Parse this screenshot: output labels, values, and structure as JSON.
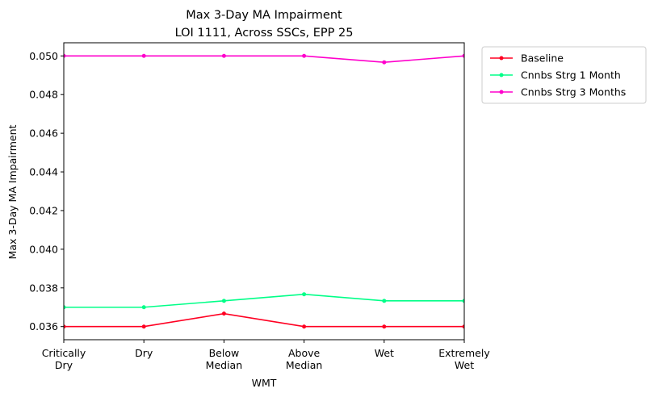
{
  "chart_data": {
    "type": "line",
    "title": "Max 3-Day MA Impairment",
    "subtitle": "LOI 1111, Across SSCs, EPP 25",
    "xlabel": "WMT",
    "ylabel": "Max 3-Day MA Impairment",
    "categories": [
      [
        "Critically",
        "Dry"
      ],
      [
        "Dry"
      ],
      [
        "Below",
        "Median"
      ],
      [
        "Above",
        "Median"
      ],
      [
        "Wet"
      ],
      [
        "Extremely",
        "Wet"
      ]
    ],
    "ylim": [
      0.03532,
      0.05068
    ],
    "yticks": [
      {
        "value": 0.036,
        "label": "0.036"
      },
      {
        "value": 0.038,
        "label": "0.038"
      },
      {
        "value": 0.04,
        "label": "0.040"
      },
      {
        "value": 0.042,
        "label": "0.042"
      },
      {
        "value": 0.044,
        "label": "0.044"
      },
      {
        "value": 0.046,
        "label": "0.046"
      },
      {
        "value": 0.048,
        "label": "0.048"
      },
      {
        "value": 0.05,
        "label": "0.050"
      }
    ],
    "grid": false,
    "legend_position": "outside-top-right",
    "series": [
      {
        "name": "Baseline",
        "color": "#ff0022",
        "values": [
          0.036,
          0.036,
          0.03667,
          0.036,
          0.036,
          0.036
        ]
      },
      {
        "name": "Cnnbs Strg 1 Month",
        "color": "#00ff88",
        "values": [
          0.037,
          0.037,
          0.03733,
          0.03767,
          0.03733,
          0.03733
        ]
      },
      {
        "name": "Cnnbs Strg 3 Months",
        "color": "#ff00cc",
        "values": [
          0.05,
          0.05,
          0.05,
          0.05,
          0.04967,
          0.05
        ]
      }
    ]
  }
}
